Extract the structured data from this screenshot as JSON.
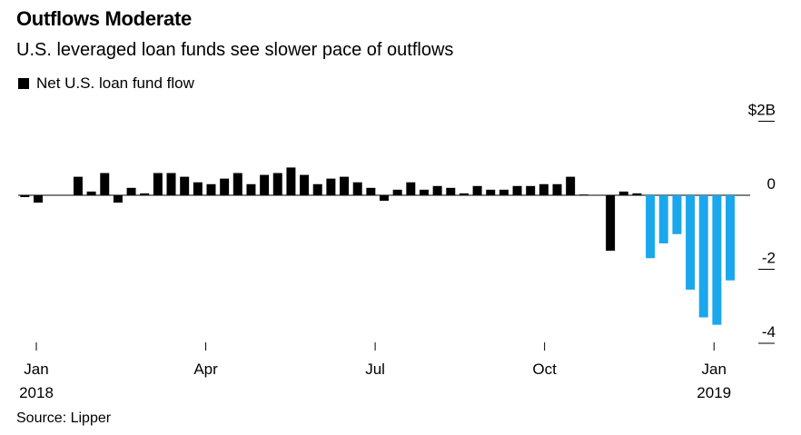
{
  "title": "Outflows Moderate",
  "subtitle": "U.S. leveraged loan funds see slower pace of outflows",
  "legend_label": "Net U.S. loan fund flow",
  "source": "Source: Lipper",
  "chart_data": {
    "type": "bar",
    "series_name": "Net U.S. loan fund flow",
    "y_unit_label": "$2B",
    "ylim": [
      -4.4,
      2.0
    ],
    "y_ticks": [
      {
        "value": 2,
        "label": "$2B"
      },
      {
        "value": 0,
        "label": "0"
      },
      {
        "value": -2,
        "label": "-2"
      },
      {
        "value": -4,
        "label": "-4"
      }
    ],
    "x_ticks": [
      {
        "week": 0,
        "label": "Jan",
        "sublabel": "2018"
      },
      {
        "week": 13,
        "label": "Apr",
        "sublabel": ""
      },
      {
        "week": 26,
        "label": "Jul",
        "sublabel": ""
      },
      {
        "week": 39,
        "label": "Oct",
        "sublabel": ""
      },
      {
        "week": 52,
        "label": "Jan",
        "sublabel": "2019"
      }
    ],
    "colors": {
      "positive": "#000000",
      "negative_recent": "#1aa7ec"
    },
    "values": [
      -0.05,
      -0.2,
      0.0,
      0.0,
      0.5,
      0.1,
      0.6,
      -0.2,
      0.2,
      0.05,
      0.6,
      0.6,
      0.5,
      0.35,
      0.3,
      0.45,
      0.6,
      0.3,
      0.55,
      0.6,
      0.75,
      0.55,
      0.3,
      0.45,
      0.5,
      0.35,
      0.2,
      -0.15,
      0.15,
      0.35,
      0.15,
      0.25,
      0.2,
      0.05,
      0.25,
      0.15,
      0.15,
      0.25,
      0.25,
      0.3,
      0.3,
      0.5,
      0.02,
      0.0,
      -1.5,
      0.1,
      0.05,
      -1.7,
      -1.3,
      -1.05,
      -2.55,
      -3.3,
      -3.5,
      -2.3,
      0.0
    ],
    "highlight_from_index": 47
  }
}
